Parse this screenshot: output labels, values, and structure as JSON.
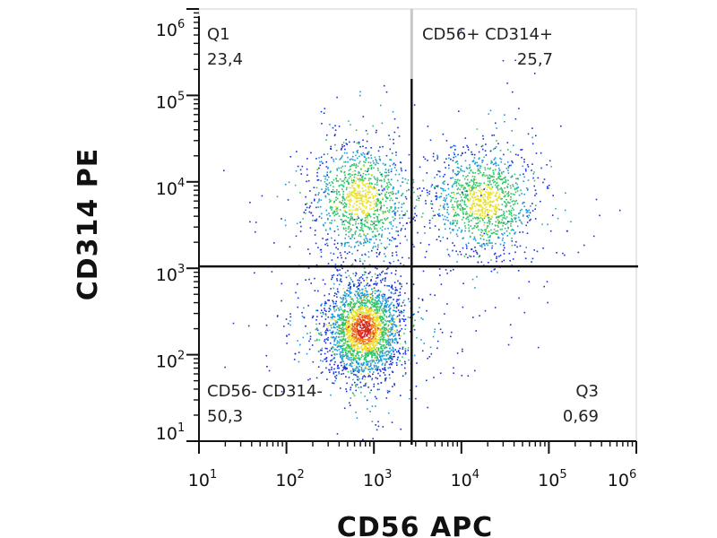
{
  "chart_data": {
    "type": "scatter",
    "plot_style": "density dot plot (pseudocolor)",
    "xlabel": "CD56 APC",
    "ylabel": "CD314 PE",
    "x_scale": "log",
    "y_scale": "log",
    "xlim": [
      10,
      1000000
    ],
    "ylim": [
      10,
      1000000
    ],
    "x_ticks": [
      {
        "base": "10",
        "exp": "1",
        "value": 10
      },
      {
        "base": "10",
        "exp": "2",
        "value": 100
      },
      {
        "base": "10",
        "exp": "3",
        "value": 1000
      },
      {
        "base": "10",
        "exp": "4",
        "value": 10000
      },
      {
        "base": "10",
        "exp": "5",
        "value": 100000
      },
      {
        "base": "10",
        "exp": "6",
        "value": 1000000
      }
    ],
    "y_ticks": [
      {
        "base": "10",
        "exp": "1",
        "value": 10
      },
      {
        "base": "10",
        "exp": "2",
        "value": 100
      },
      {
        "base": "10",
        "exp": "3",
        "value": 1000
      },
      {
        "base": "10",
        "exp": "4",
        "value": 10000
      },
      {
        "base": "10",
        "exp": "5",
        "value": 100000
      },
      {
        "base": "10",
        "exp": "6",
        "value": 1000000
      }
    ],
    "quadrant_gates": {
      "x": 2700,
      "y": 1050
    },
    "quadrants": [
      {
        "name": "Q1",
        "value": "23,4",
        "position": "top-left"
      },
      {
        "name": "CD56+ CD314+",
        "value": "25,7",
        "position": "top-right"
      },
      {
        "name": "CD56- CD314-",
        "value": "50,3",
        "position": "bottom-left"
      },
      {
        "name": "Q3",
        "value": "0,69",
        "position": "bottom-right"
      }
    ],
    "populations": [
      {
        "center_x": 700,
        "center_y": 6500,
        "spread_x_decades": 0.28,
        "spread_y_decades": 0.33,
        "relative_count": 1200
      },
      {
        "center_x": 18000,
        "center_y": 6000,
        "spread_x_decades": 0.3,
        "spread_y_decades": 0.3,
        "relative_count": 1250
      },
      {
        "center_x": 750,
        "center_y": 200,
        "spread_x_decades": 0.22,
        "spread_y_decades": 0.28,
        "relative_count": 2500
      }
    ],
    "density_colors": [
      "#1a2fd6",
      "#1e9ad8",
      "#2fc26a",
      "#e8e02a",
      "#f07a1a",
      "#d8261a"
    ]
  }
}
